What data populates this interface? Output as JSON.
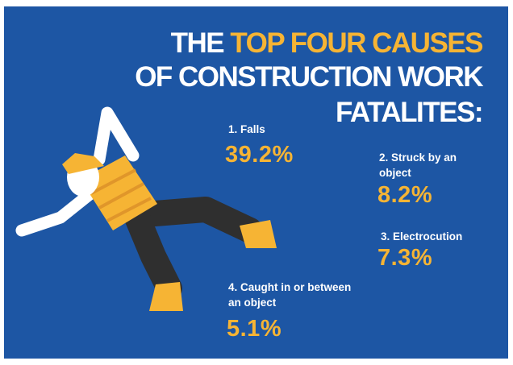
{
  "title": {
    "lead": "THE",
    "highlight": "TOP FOUR CAUSES",
    "line2": "OF CONSTRUCTION WORK",
    "line3": "FATALITES:"
  },
  "causes": [
    {
      "label": "1. Falls",
      "value": "39.2%"
    },
    {
      "label": "2. Struck by an object",
      "value": "8.2%"
    },
    {
      "label": "3. Electrocution",
      "value": "7.3%"
    },
    {
      "label": "4. Caught in or between an object",
      "value": "5.1%"
    }
  ]
}
